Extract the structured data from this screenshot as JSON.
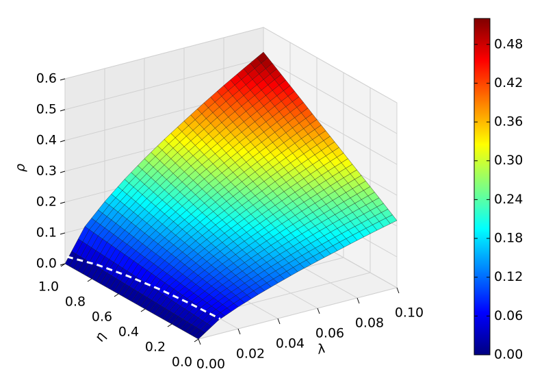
{
  "chart_data": {
    "type": "surface",
    "xlabel": "λ",
    "ylabel": "η",
    "zlabel": "ρ",
    "x": [
      0,
      0.01,
      0.02,
      0.03,
      0.04,
      0.05,
      0.06,
      0.07,
      0.08,
      0.09,
      0.1
    ],
    "y": [
      0,
      0.1,
      0.2,
      0.3,
      0.4,
      0.5,
      0.6,
      0.7,
      0.8,
      0.9,
      1.0
    ],
    "z": [
      [
        0,
        0.044,
        0.071,
        0.094,
        0.115,
        0.135,
        0.153,
        0.17,
        0.187,
        0.203,
        0.218
      ],
      [
        0,
        0.05,
        0.081,
        0.107,
        0.131,
        0.153,
        0.174,
        0.194,
        0.213,
        0.231,
        0.249
      ],
      [
        0,
        0.056,
        0.09,
        0.12,
        0.147,
        0.172,
        0.195,
        0.217,
        0.238,
        0.259,
        0.279
      ],
      [
        0,
        0.062,
        0.1,
        0.133,
        0.163,
        0.19,
        0.216,
        0.241,
        0.264,
        0.287,
        0.309
      ],
      [
        0,
        0.068,
        0.11,
        0.146,
        0.179,
        0.209,
        0.237,
        0.264,
        0.29,
        0.315,
        0.339
      ],
      [
        0,
        0.074,
        0.12,
        0.159,
        0.195,
        0.227,
        0.258,
        0.288,
        0.316,
        0.343,
        0.369
      ],
      [
        0,
        0.08,
        0.129,
        0.172,
        0.21,
        0.246,
        0.279,
        0.311,
        0.341,
        0.371,
        0.399
      ],
      [
        0,
        0.086,
        0.139,
        0.185,
        0.226,
        0.265,
        0.3,
        0.335,
        0.367,
        0.399,
        0.43
      ],
      [
        0,
        0.092,
        0.149,
        0.198,
        0.242,
        0.283,
        0.321,
        0.358,
        0.393,
        0.427,
        0.46
      ],
      [
        0,
        0.098,
        0.159,
        0.211,
        0.258,
        0.302,
        0.342,
        0.382,
        0.419,
        0.455,
        0.49
      ],
      [
        0,
        0.104,
        0.168,
        0.224,
        0.274,
        0.32,
        0.363,
        0.405,
        0.445,
        0.483,
        0.52
      ]
    ],
    "xlim": [
      0,
      0.1
    ],
    "ylim": [
      0,
      1
    ],
    "zlim": [
      0,
      0.6
    ],
    "xticks": [
      {
        "value": 0,
        "label": "0.00"
      },
      0.02,
      0.04,
      0.06,
      0.08,
      {
        "value": 0.1,
        "label": "0.10"
      }
    ],
    "yticks": [
      {
        "value": 0,
        "label": "0.0"
      },
      0.2,
      0.4,
      0.6,
      0.8,
      {
        "value": 1,
        "label": "1.0"
      }
    ],
    "zticks": [
      {
        "value": 0,
        "label": "0.0"
      },
      0.1,
      0.2,
      0.3,
      0.4,
      0.5,
      0.6
    ],
    "grid": true,
    "colormap": "jet",
    "clim": [
      0,
      0.52
    ],
    "cticks": [
      {
        "value": 0,
        "label": "0.00"
      },
      0.06,
      0.12,
      0.18,
      0.24,
      {
        "value": 0.3,
        "label": "0.30"
      },
      0.36,
      0.42,
      0.48
    ],
    "curve": {
      "x": [
        0.001,
        0.003,
        0.005,
        0.007,
        0.009,
        0.011
      ],
      "y": [
        1,
        0.8,
        0.6,
        0.4,
        0.2,
        0
      ],
      "z": [
        0.021,
        0.04,
        0.049,
        0.053,
        0.052,
        0.047
      ],
      "color": "#ffffff",
      "dashed": true
    }
  }
}
